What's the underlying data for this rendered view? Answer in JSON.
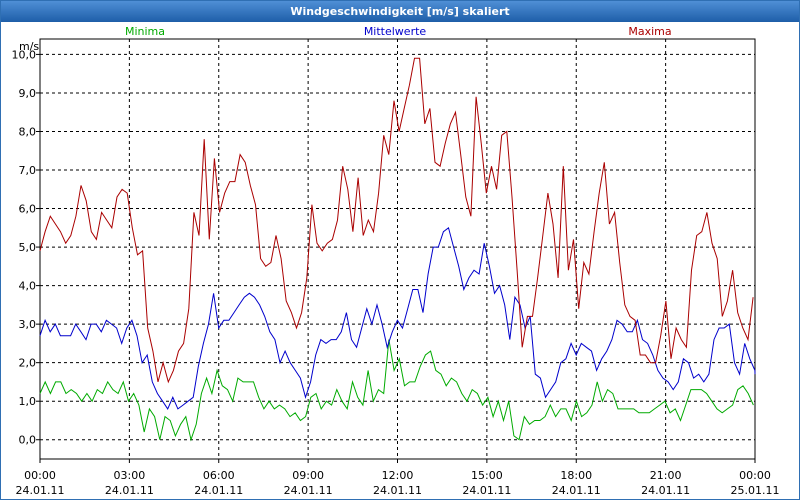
{
  "window": {
    "title": "Windgeschwindigkeit [m/s] skaliert"
  },
  "colors": {
    "minima": "#00aa00",
    "mittel": "#0000cc",
    "maxima": "#aa0000",
    "titlebar": "#2a6cb8"
  },
  "chart_data": {
    "type": "line",
    "title": "Windgeschwindigkeit [m/s] skaliert",
    "ylabel": "m/s",
    "xlabel": "",
    "ylim": [
      -0.5,
      10.4
    ],
    "xlim": [
      0,
      24
    ],
    "grid": true,
    "legend": "top",
    "y_ticks": [
      "0,0",
      "1,0",
      "2,0",
      "3,0",
      "4,0",
      "5,0",
      "6,0",
      "7,0",
      "8,0",
      "9,0",
      "10,0"
    ],
    "y_tick_values": [
      0,
      1,
      2,
      3,
      4,
      5,
      6,
      7,
      8,
      9,
      10
    ],
    "x_ticks": [
      {
        "hour": 0,
        "time": "00:00",
        "date": "24.01.11"
      },
      {
        "hour": 3,
        "time": "03:00",
        "date": "24.01.11"
      },
      {
        "hour": 6,
        "time": "06:00",
        "date": "24.01.11"
      },
      {
        "hour": 9,
        "time": "09:00",
        "date": "24.01.11"
      },
      {
        "hour": 12,
        "time": "12:00",
        "date": "24.01.11"
      },
      {
        "hour": 15,
        "time": "15:00",
        "date": "24.01.11"
      },
      {
        "hour": 18,
        "time": "18:00",
        "date": "24.01.11"
      },
      {
        "hour": 21,
        "time": "21:00",
        "date": "24.01.11"
      },
      {
        "hour": 24,
        "time": "00:00",
        "date": "25.01.11"
      }
    ],
    "series": [
      {
        "name": "Minima",
        "color": "#00aa00",
        "values": [
          1.2,
          1.5,
          1.2,
          1.5,
          1.5,
          1.2,
          1.3,
          1.2,
          1.0,
          1.2,
          1.0,
          1.3,
          1.2,
          1.5,
          1.3,
          1.2,
          1.5,
          1.0,
          1.2,
          0.9,
          0.2,
          0.8,
          0.6,
          0.0,
          0.6,
          0.5,
          0.1,
          0.4,
          0.6,
          0.0,
          0.4,
          1.2,
          1.6,
          1.2,
          1.8,
          1.4,
          1.3,
          1.0,
          1.6,
          1.5,
          1.5,
          1.5,
          1.1,
          0.8,
          1.0,
          0.8,
          0.9,
          0.8,
          0.6,
          0.7,
          0.5,
          0.6,
          1.1,
          1.2,
          0.8,
          1.0,
          0.9,
          1.3,
          1.0,
          0.8,
          1.5,
          1.1,
          0.9,
          1.8,
          1.0,
          1.3,
          1.2,
          2.6,
          1.8,
          2.1,
          1.4,
          1.5,
          1.5,
          1.9,
          2.2,
          2.3,
          1.8,
          1.7,
          1.4,
          1.6,
          1.5,
          1.2,
          1.0,
          1.3,
          1.2,
          0.9,
          1.1,
          0.6,
          1.0,
          0.5,
          1.0,
          0.1,
          0.0,
          0.6,
          0.4,
          0.5,
          0.5,
          0.6,
          0.9,
          0.6,
          0.8,
          0.8,
          0.5,
          1.0,
          0.6,
          0.7,
          0.9,
          1.5,
          1.0,
          1.3,
          1.2,
          0.8,
          0.8,
          0.8,
          0.8,
          0.7,
          0.7,
          0.7,
          0.8,
          0.9,
          1.0,
          0.7,
          0.8,
          0.5,
          0.9,
          1.3,
          1.3,
          1.3,
          1.2,
          1.0,
          0.8,
          0.7,
          0.8,
          0.9,
          1.3,
          1.4,
          1.2,
          0.9
        ],
        "step_hours": 0.1748
      },
      {
        "name": "Mittelwerte",
        "color": "#0000cc",
        "values": [
          2.7,
          3.1,
          2.8,
          3.0,
          2.7,
          2.7,
          2.7,
          3.0,
          2.8,
          2.6,
          3.0,
          3.0,
          2.8,
          3.1,
          3.0,
          2.9,
          2.5,
          2.9,
          3.1,
          2.7,
          2.0,
          2.2,
          1.5,
          1.2,
          1.0,
          0.8,
          1.1,
          0.8,
          0.9,
          1.0,
          1.1,
          1.9,
          2.5,
          3.0,
          3.8,
          2.9,
          3.1,
          3.1,
          3.3,
          3.5,
          3.7,
          3.8,
          3.7,
          3.5,
          3.2,
          2.8,
          2.6,
          2.0,
          2.3,
          2.0,
          1.8,
          1.6,
          1.1,
          1.5,
          2.2,
          2.6,
          2.5,
          2.6,
          2.6,
          2.8,
          3.3,
          2.6,
          2.4,
          2.9,
          3.4,
          3.0,
          3.5,
          3.0,
          2.4,
          2.8,
          3.1,
          2.9,
          3.4,
          3.9,
          3.9,
          3.3,
          4.3,
          5.0,
          5.0,
          5.4,
          5.5,
          5.0,
          4.5,
          3.9,
          4.2,
          4.4,
          4.3,
          5.1,
          4.5,
          3.8,
          4.0,
          3.5,
          2.6,
          3.7,
          3.5,
          2.9,
          3.2,
          1.7,
          1.6,
          1.1,
          1.3,
          1.5,
          2.0,
          2.1,
          2.5,
          2.2,
          2.5,
          2.4,
          2.3,
          1.8,
          2.1,
          2.3,
          2.6,
          3.1,
          3.0,
          2.8,
          2.8,
          3.1,
          2.6,
          2.5,
          2.2,
          1.8,
          1.6,
          1.5,
          1.3,
          1.5,
          2.1,
          2.0,
          1.6,
          1.7,
          1.5,
          1.7,
          2.6,
          2.9,
          2.9,
          3.0,
          2.0,
          1.7,
          2.5,
          2.1,
          1.8,
          1.7
        ],
        "step_hours": 0.1714
      },
      {
        "name": "Maxima",
        "color": "#aa0000",
        "values": [
          4.9,
          5.4,
          5.8,
          5.6,
          5.4,
          5.1,
          5.3,
          5.8,
          6.6,
          6.2,
          5.4,
          5.2,
          5.9,
          5.7,
          5.5,
          6.3,
          6.5,
          6.4,
          5.5,
          4.8,
          4.9,
          2.9,
          2.3,
          1.5,
          2.0,
          1.5,
          1.8,
          2.3,
          2.5,
          3.4,
          5.9,
          5.3,
          7.8,
          5.2,
          7.3,
          5.9,
          6.4,
          6.7,
          6.7,
          7.4,
          7.2,
          6.6,
          6.1,
          4.7,
          4.5,
          4.6,
          5.3,
          4.7,
          3.6,
          3.3,
          2.9,
          3.3,
          4.2,
          6.1,
          5.1,
          4.9,
          5.1,
          5.2,
          5.7,
          7.1,
          6.5,
          5.4,
          6.8,
          5.3,
          5.7,
          5.4,
          6.4,
          7.9,
          7.4,
          8.8,
          8.0,
          8.6,
          9.2,
          9.9,
          9.9,
          8.2,
          8.6,
          7.2,
          7.1,
          7.7,
          8.2,
          8.5,
          7.4,
          6.3,
          5.8,
          8.9,
          7.7,
          6.4,
          7.1,
          6.5,
          7.9,
          8.0,
          6.3,
          4.4,
          2.4,
          3.2,
          3.2,
          4.2,
          5.3,
          6.4,
          5.6,
          4.2,
          7.1,
          4.4,
          5.2,
          3.4,
          4.6,
          4.3,
          5.4,
          6.4,
          7.2,
          5.6,
          5.9,
          4.6,
          3.5,
          3.2,
          3.1,
          2.2,
          2.2,
          2.0,
          2.0,
          2.7,
          3.6,
          2.1,
          2.9,
          2.6,
          2.4,
          4.4,
          5.3,
          5.4,
          5.9,
          5.1,
          4.7,
          3.2,
          3.6,
          4.4,
          3.3,
          2.9,
          2.6,
          3.7
        ],
        "step_hours": 0.1722
      }
    ]
  }
}
